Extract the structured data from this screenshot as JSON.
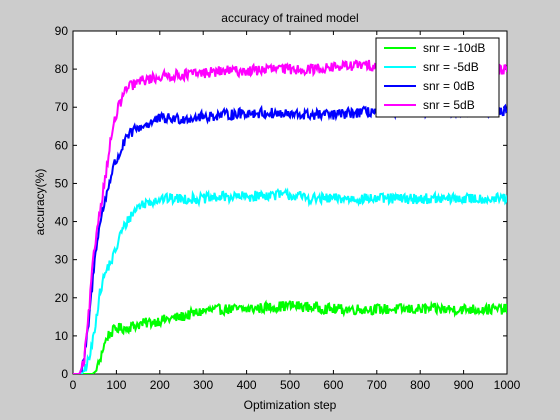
{
  "chart_data": {
    "type": "line",
    "title": "accuracy of trained model",
    "xlabel": "Optimization step",
    "ylabel": "accuracy(%)",
    "xlim": [
      0,
      1000
    ],
    "ylim": [
      0,
      90
    ],
    "xticks": [
      "0",
      "100",
      "200",
      "300",
      "400",
      "500",
      "600",
      "700",
      "800",
      "900",
      "1000"
    ],
    "yticks": [
      "0",
      "10",
      "20",
      "30",
      "40",
      "50",
      "60",
      "70",
      "80",
      "90"
    ],
    "grid": false,
    "legend_position": "top-right",
    "series": [
      {
        "name": "snr = -10dB",
        "color": "#00ff00",
        "x": [
          0,
          30,
          45,
          55,
          60,
          70,
          80,
          90,
          100,
          120,
          150,
          200,
          250,
          300,
          350,
          400,
          450,
          500,
          550,
          600,
          650,
          700,
          750,
          800,
          850,
          900,
          950,
          1000
        ],
        "y": [
          0,
          0,
          0,
          1,
          3,
          7,
          10,
          11,
          12,
          12,
          13,
          14,
          15,
          16.5,
          17,
          17,
          17.5,
          18,
          17.5,
          17,
          17,
          17,
          17,
          17,
          17,
          17,
          17,
          17
        ]
      },
      {
        "name": "snr = -5dB",
        "color": "#00ffff",
        "x": [
          0,
          20,
          30,
          40,
          50,
          60,
          70,
          80,
          90,
          100,
          110,
          120,
          130,
          150,
          170,
          200,
          250,
          300,
          350,
          400,
          450,
          500,
          550,
          600,
          650,
          700,
          750,
          800,
          850,
          900,
          950,
          1000
        ],
        "y": [
          0,
          0,
          2,
          5,
          12,
          20,
          25,
          28,
          30,
          33,
          37,
          39,
          41,
          44,
          45,
          46,
          46,
          46,
          46.5,
          46.5,
          47,
          47,
          46,
          46,
          46,
          46,
          46,
          46,
          46,
          46,
          46,
          46
        ]
      },
      {
        "name": "snr = 0dB",
        "color": "#0000ff",
        "x": [
          0,
          15,
          25,
          35,
          45,
          55,
          65,
          75,
          85,
          95,
          105,
          115,
          125,
          140,
          160,
          180,
          200,
          250,
          300,
          350,
          400,
          450,
          500,
          550,
          600,
          650,
          700,
          750,
          800,
          850,
          900,
          950,
          1000
        ],
        "y": [
          0,
          0,
          3,
          12,
          24,
          35,
          41,
          46,
          51,
          55,
          57,
          60,
          62,
          64,
          65,
          66,
          67,
          67,
          67.5,
          68,
          68.5,
          68.5,
          68,
          68,
          68,
          68.5,
          69,
          69,
          69,
          69,
          69,
          69,
          69
        ]
      },
      {
        "name": "snr = 5dB",
        "color": "#ff00ff",
        "x": [
          0,
          15,
          25,
          35,
          45,
          55,
          65,
          75,
          85,
          95,
          105,
          115,
          125,
          140,
          160,
          180,
          200,
          250,
          300,
          350,
          400,
          450,
          500,
          550,
          600,
          650,
          700,
          750,
          800,
          850,
          900,
          950,
          1000
        ],
        "y": [
          0,
          0,
          3,
          14,
          28,
          38,
          45,
          52,
          60,
          66,
          70,
          73,
          75,
          76,
          77,
          77.5,
          78,
          78.5,
          79,
          79.5,
          79.5,
          80,
          80,
          80,
          80.5,
          81,
          81,
          81,
          80.5,
          80,
          80,
          80,
          80
        ]
      }
    ]
  }
}
